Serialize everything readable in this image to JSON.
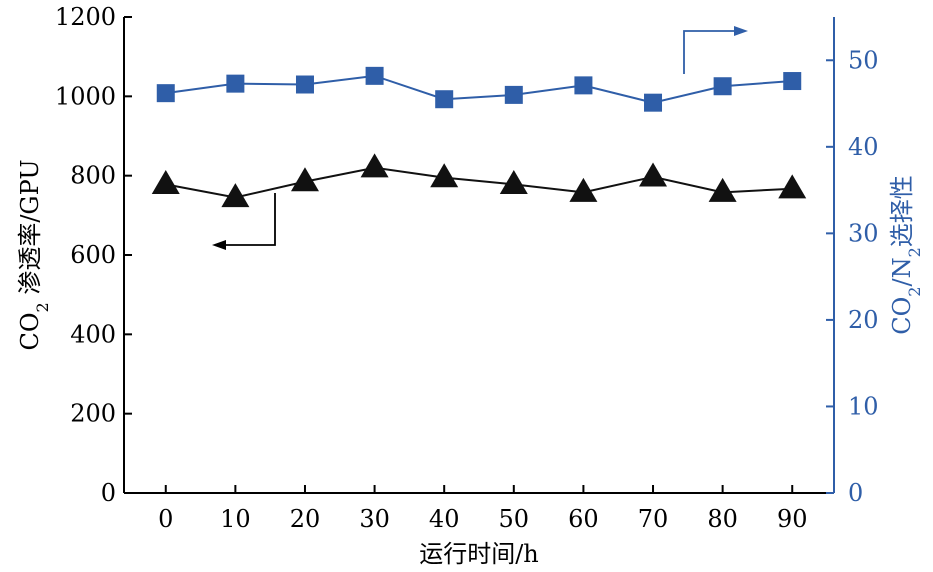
{
  "chart_data": {
    "type": "line",
    "x": [
      0,
      10,
      20,
      30,
      40,
      50,
      60,
      70,
      80,
      90
    ],
    "xlabel": "运行时间/h",
    "xlim": [
      -6,
      96
    ],
    "x_ticks": [
      "0",
      "10",
      "20",
      "30",
      "40",
      "50",
      "60",
      "70",
      "80",
      "90"
    ],
    "y_left": {
      "label_parts": [
        "CO",
        "2",
        " 渗透率/GPU"
      ],
      "lim": [
        0,
        1200
      ],
      "ticks": [
        "0",
        "200",
        "400",
        "600",
        "800",
        "1000",
        "1200"
      ]
    },
    "y_right": {
      "label_parts": [
        "CO",
        "2",
        "/N",
        "2",
        "选择性"
      ],
      "lim": [
        0,
        55
      ],
      "ticks": [
        "0",
        "10",
        "20",
        "30",
        "40",
        "50"
      ]
    },
    "series": [
      {
        "axis": "left",
        "marker": "triangle",
        "color": "#111111",
        "values": [
          778,
          745,
          785,
          820,
          795,
          778,
          758,
          797,
          758,
          767
        ]
      },
      {
        "axis": "right",
        "marker": "square",
        "color": "#2f5ea8",
        "values": [
          46.2,
          47.3,
          47.2,
          48.2,
          45.5,
          46.0,
          47.1,
          45.1,
          47.0,
          47.6
        ]
      }
    ],
    "grid": false,
    "right_axis_color": "#2f5ea8"
  }
}
